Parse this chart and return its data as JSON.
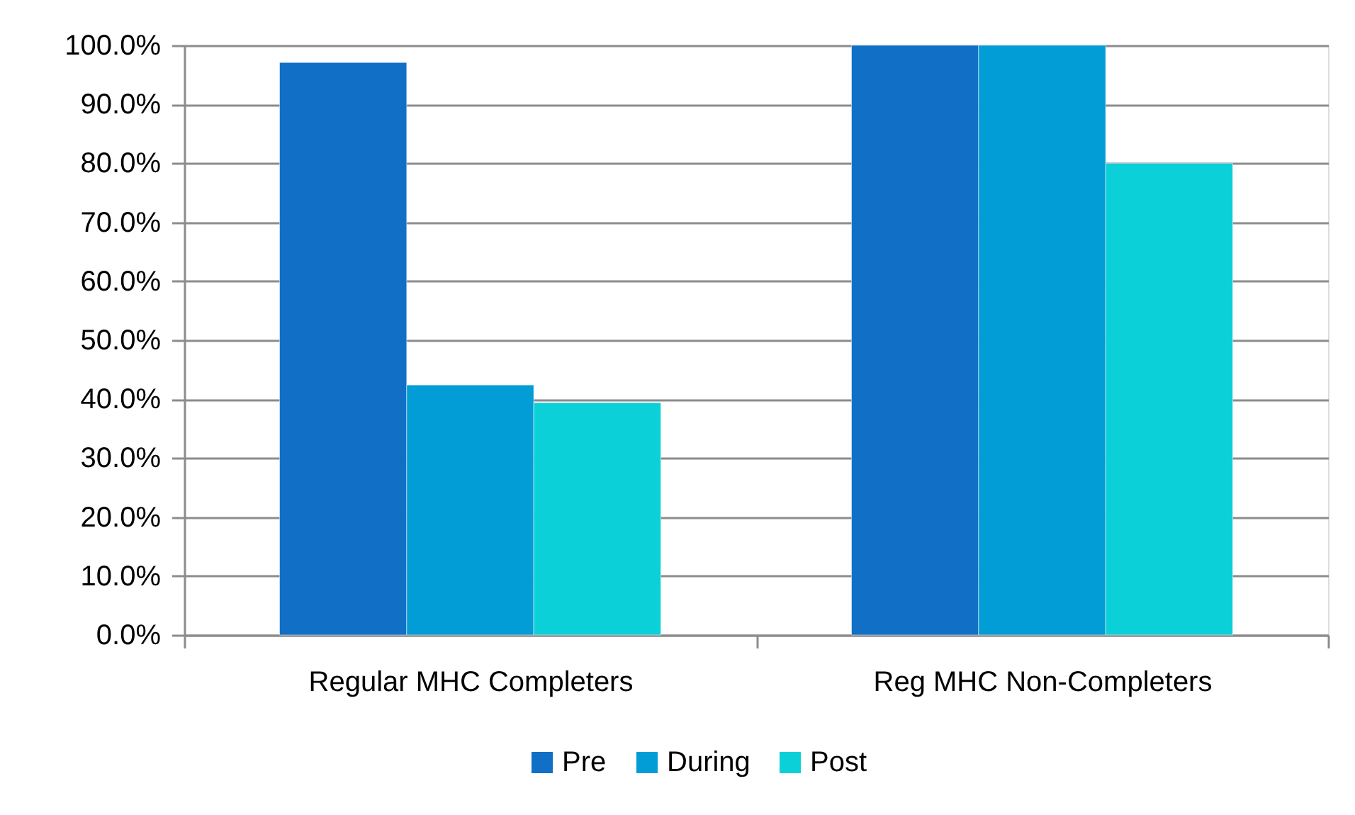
{
  "chart_data": {
    "type": "bar",
    "categories": [
      "Regular MHC Completers",
      "Reg MHC Non-Completers"
    ],
    "series": [
      {
        "name": "Pre",
        "color": "#1170c6",
        "values": [
          97.1,
          100
        ]
      },
      {
        "name": "During",
        "color": "#029dd6",
        "values": [
          42.4,
          100
        ]
      },
      {
        "name": "Post",
        "color": "#0cd0d8",
        "values": [
          39.4,
          80
        ]
      }
    ],
    "ylim": [
      0,
      100
    ],
    "yticks": [
      {
        "value": 0,
        "label": "0.0%"
      },
      {
        "value": 10,
        "label": "10.0%"
      },
      {
        "value": 20,
        "label": "20.0%"
      },
      {
        "value": 30,
        "label": "30.0%"
      },
      {
        "value": 40,
        "label": "40.0%"
      },
      {
        "value": 50,
        "label": "50.0%"
      },
      {
        "value": 60,
        "label": "60.0%"
      },
      {
        "value": 70,
        "label": "70.0%"
      },
      {
        "value": 80,
        "label": "80.0%"
      },
      {
        "value": 90,
        "label": "90.0%"
      },
      {
        "value": 100,
        "label": "100.0%"
      }
    ],
    "grid": "y",
    "legend": "bottom"
  }
}
